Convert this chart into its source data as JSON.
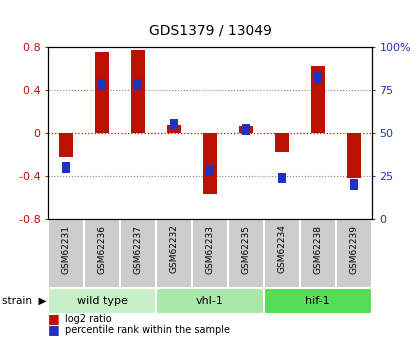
{
  "title": "GDS1379 / 13049",
  "samples": [
    "GSM62231",
    "GSM62236",
    "GSM62237",
    "GSM62232",
    "GSM62233",
    "GSM62235",
    "GSM62234",
    "GSM62238",
    "GSM62239"
  ],
  "log2_ratio": [
    -0.22,
    0.75,
    0.77,
    0.07,
    -0.57,
    0.06,
    -0.18,
    0.62,
    -0.42
  ],
  "percentile_rank": [
    30,
    78,
    78,
    55,
    28,
    52,
    24,
    82,
    20
  ],
  "groups": [
    {
      "label": "wild type",
      "start": 0,
      "end": 3,
      "color": "#c8f0c8"
    },
    {
      "label": "vhl-1",
      "start": 3,
      "end": 6,
      "color": "#a8e8a8"
    },
    {
      "label": "hif-1",
      "start": 6,
      "end": 9,
      "color": "#55dd55"
    }
  ],
  "ylim_left": [
    -0.8,
    0.8
  ],
  "ylim_right": [
    0,
    100
  ],
  "yticks_left": [
    -0.8,
    -0.4,
    0.0,
    0.4,
    0.8
  ],
  "yticks_right": [
    0,
    25,
    50,
    75,
    100
  ],
  "bar_color_red": "#bb1100",
  "bar_color_blue": "#2233bb",
  "background_color": "#ffffff",
  "sample_cell_color": "#cccccc",
  "bar_width": 0.4,
  "blue_marker_size": 0.25
}
